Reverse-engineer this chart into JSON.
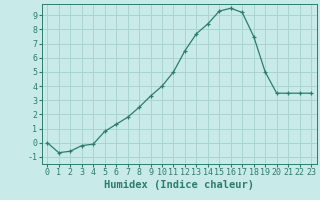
{
  "x": [
    0,
    1,
    2,
    3,
    4,
    5,
    6,
    7,
    8,
    9,
    10,
    11,
    12,
    13,
    14,
    15,
    16,
    17,
    18,
    19,
    20,
    21,
    22,
    23
  ],
  "y": [
    0.0,
    -0.7,
    -0.6,
    -0.2,
    -0.1,
    0.8,
    1.3,
    1.8,
    2.5,
    3.3,
    4.0,
    5.0,
    6.5,
    7.7,
    8.4,
    9.3,
    9.5,
    9.2,
    7.5,
    5.0,
    3.5,
    3.5,
    3.5,
    3.5
  ],
  "title": "",
  "xlabel": "Humidex (Indice chaleur)",
  "ylabel": "",
  "xlim": [
    -0.5,
    23.5
  ],
  "ylim": [
    -1.5,
    9.8
  ],
  "yticks": [
    -1,
    0,
    1,
    2,
    3,
    4,
    5,
    6,
    7,
    8,
    9
  ],
  "xtick_labels": [
    "0",
    "1",
    "2",
    "3",
    "4",
    "5",
    "6",
    "7",
    "8",
    "9",
    "10",
    "11",
    "12",
    "13",
    "14",
    "15",
    "16",
    "17",
    "18",
    "19",
    "20",
    "21",
    "22",
    "23"
  ],
  "line_color": "#2d7d6e",
  "marker": "+",
  "bg_color": "#c8eae8",
  "grid_color": "#aad4d0",
  "font_color": "#2d7d6e",
  "tick_fontsize": 6.0,
  "xlabel_fontsize": 7.5,
  "xlabel_fontweight": "bold"
}
